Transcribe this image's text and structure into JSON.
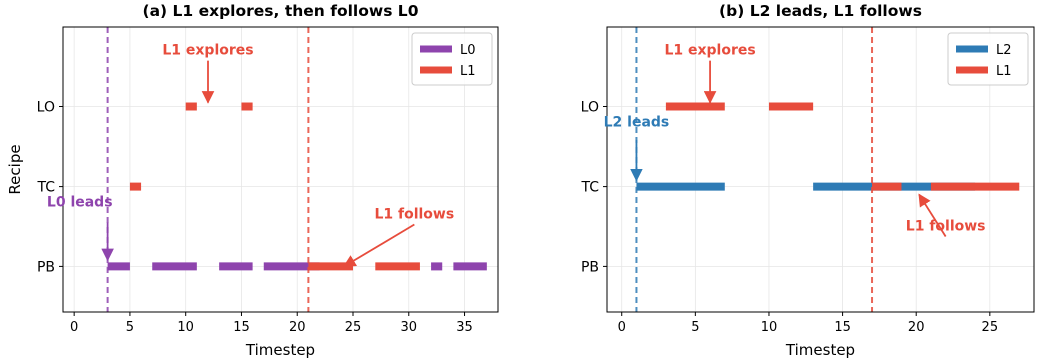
{
  "chart_data": [
    {
      "type": "timeline",
      "title": "(a) L1 explores, then follows L0",
      "xlabel": "Timestep",
      "ylabel": "Recipe",
      "xlim": [
        -1,
        38
      ],
      "xticks": [
        0,
        5,
        10,
        15,
        20,
        25,
        30,
        35
      ],
      "categories": [
        "PB",
        "TC",
        "LO"
      ],
      "grid": true,
      "legend_position": "top-right",
      "series": [
        {
          "name": "L0",
          "color": "#8e44ad",
          "segments": [
            {
              "recipe": "PB",
              "start": 3,
              "end": 5
            },
            {
              "recipe": "PB",
              "start": 7,
              "end": 11
            },
            {
              "recipe": "PB",
              "start": 13,
              "end": 16
            },
            {
              "recipe": "PB",
              "start": 17,
              "end": 22
            },
            {
              "recipe": "PB",
              "start": 32,
              "end": 33
            },
            {
              "recipe": "PB",
              "start": 34,
              "end": 37
            }
          ]
        },
        {
          "name": "L1",
          "color": "#e74c3c",
          "segments": [
            {
              "recipe": "TC",
              "start": 5,
              "end": 6
            },
            {
              "recipe": "LO",
              "start": 10,
              "end": 11
            },
            {
              "recipe": "LO",
              "start": 15,
              "end": 16
            },
            {
              "recipe": "PB",
              "start": 21,
              "end": 25
            },
            {
              "recipe": "PB",
              "start": 27,
              "end": 31
            }
          ]
        }
      ],
      "vlines": [
        {
          "x": 3,
          "color": "#8e44ad"
        },
        {
          "x": 21,
          "color": "#e74c3c"
        }
      ],
      "annotations": [
        {
          "text": "L1 explores",
          "color": "#e74c3c",
          "text_x": 12,
          "text_y": "LO",
          "text_dy": 0.65,
          "arrow_to_x": 12,
          "arrow_to_y": "LO",
          "arrow_to_dy": 0.05
        },
        {
          "text": "L0 leads",
          "color": "#8e44ad",
          "text_x": 0.5,
          "text_y": "TC",
          "text_dy": -0.25,
          "arrow_from_x": 3,
          "arrow_from_dy": -0.45,
          "arrow_to_x": 3,
          "arrow_to_y": "PB",
          "arrow_to_dy": 0.08
        },
        {
          "text": "L1 follows",
          "color": "#e74c3c",
          "text_x": 30.5,
          "text_y": "PB",
          "text_dy": 0.6,
          "arrow_to_x": 24.2,
          "arrow_to_y": "PB",
          "arrow_to_dy": 0.0
        }
      ]
    },
    {
      "type": "timeline",
      "title": "(b) L2 leads, L1 follows",
      "xlabel": "Timestep",
      "ylabel": "",
      "xlim": [
        -1,
        28
      ],
      "xticks": [
        0,
        5,
        10,
        15,
        20,
        25
      ],
      "categories": [
        "PB",
        "TC",
        "LO"
      ],
      "grid": true,
      "legend_position": "top-right",
      "series": [
        {
          "name": "L2",
          "color": "#2e7bb5",
          "segments": [
            {
              "recipe": "TC",
              "start": 1,
              "end": 7
            },
            {
              "recipe": "TC",
              "start": 13,
              "end": 24
            }
          ]
        },
        {
          "name": "L1",
          "color": "#e74c3c",
          "segments": [
            {
              "recipe": "LO",
              "start": 3,
              "end": 7
            },
            {
              "recipe": "LO",
              "start": 10,
              "end": 13
            },
            {
              "recipe": "TC",
              "start": 17,
              "end": 19
            },
            {
              "recipe": "TC",
              "start": 21,
              "end": 27
            }
          ]
        }
      ],
      "vlines": [
        {
          "x": 1,
          "color": "#2e7bb5"
        },
        {
          "x": 17,
          "color": "#e74c3c"
        }
      ],
      "annotations": [
        {
          "text": "L1 explores",
          "color": "#e74c3c",
          "text_x": 6,
          "text_y": "LO",
          "text_dy": 0.65,
          "arrow_to_x": 6,
          "arrow_to_y": "LO",
          "arrow_to_dy": 0.05
        },
        {
          "text": "L2 leads",
          "color": "#2e7bb5",
          "text_x": 1,
          "text_y": "LO",
          "text_dy": -0.25,
          "arrow_from_x": 1,
          "arrow_from_dy": -0.42,
          "arrow_to_x": 1,
          "arrow_to_y": "TC",
          "arrow_to_dy": 0.08
        },
        {
          "text": "L1 follows",
          "color": "#e74c3c",
          "text_x": 22,
          "text_y": "TC",
          "text_dy": -0.55,
          "arrow_to_x": 20.2,
          "arrow_to_y": "TC",
          "arrow_to_dy": -0.1
        }
      ]
    }
  ]
}
